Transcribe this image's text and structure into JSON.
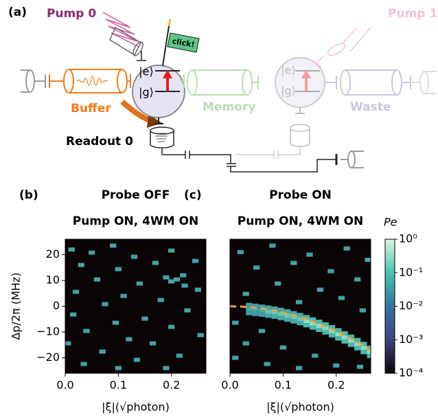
{
  "diagram": {
    "panel_label": "(a)",
    "pump0": "Pump 0",
    "pump1": "Pump 1",
    "click": "click!",
    "qubit0": {
      "e": "|e⟩",
      "g": "|g⟩"
    },
    "qubit1": {
      "e": "|e⟩",
      "g": "|g⟩"
    },
    "buffer": "Buffer",
    "memory": "Memory",
    "waste": "Waste",
    "readout": "Readout 0"
  },
  "colorbar": {
    "label": "Pe",
    "log": true,
    "lim": [
      0.0001,
      1
    ],
    "ticks": [
      {
        "value": 1,
        "label": "10⁰"
      },
      {
        "value": 0.1,
        "label": "10⁻¹"
      },
      {
        "value": 0.01,
        "label": "10⁻²"
      },
      {
        "value": 0.001,
        "label": "10⁻³"
      },
      {
        "value": 0.0001,
        "label": "10⁻⁴"
      }
    ],
    "colormap": [
      "#0b0405",
      "#40427f",
      "#3573a1",
      "#49c1ad",
      "#def5e5"
    ]
  },
  "chart_data": [
    {
      "type": "heatmap",
      "panel_label": "(b)",
      "title": "Probe OFF",
      "subtitle": "Pump ON, 4WM ON",
      "xlabel": "|ξ|(√photon)",
      "ylabel": "Δp/2π (MHz)",
      "xlim": [
        0,
        0.265
      ],
      "ylim": [
        -26,
        26
      ],
      "xticks": [
        {
          "value": 0,
          "label": "0.0"
        },
        {
          "value": 0.1,
          "label": "0.1"
        },
        {
          "value": 0.2,
          "label": "0.2"
        }
      ],
      "yticks": [
        20,
        10,
        0,
        {
          "value": -10,
          "label": "−10"
        },
        {
          "value": -20,
          "label": "−20"
        }
      ],
      "x_step": 0.012,
      "y_step": 1.6,
      "background": 0.0001,
      "points": [
        [
          0.012,
          22,
          0.04
        ],
        [
          0.05,
          20.8,
          0.04
        ],
        [
          0.09,
          23.5,
          0.04
        ],
        [
          0.13,
          19.2,
          0.04
        ],
        [
          0.2,
          21.6,
          0.04
        ],
        [
          0.245,
          17.6,
          0.04
        ],
        [
          0.03,
          16,
          0.04
        ],
        [
          0.1,
          14.4,
          0.04
        ],
        [
          0.17,
          16.8,
          0.04
        ],
        [
          0.222,
          12,
          0.04
        ],
        [
          0.21,
          10.4,
          0.04
        ],
        [
          0.06,
          10.4,
          0.04
        ],
        [
          0.14,
          8.8,
          0.04
        ],
        [
          0.25,
          6.4,
          0.04
        ],
        [
          0.02,
          5.6,
          0.04
        ],
        [
          0.11,
          4,
          0.04
        ],
        [
          0.18,
          2.4,
          0.04
        ],
        [
          0.075,
          0.8,
          0.04
        ],
        [
          0.23,
          -1.6,
          0.04
        ],
        [
          0.015,
          -3.2,
          0.04
        ],
        [
          0.15,
          -4.8,
          0.04
        ],
        [
          0.095,
          -6.4,
          0.04
        ],
        [
          0.2,
          -8,
          0.04
        ],
        [
          0.04,
          -9.6,
          0.04
        ],
        [
          0.255,
          -11.2,
          0.04
        ],
        [
          0.12,
          -12.8,
          0.04
        ],
        [
          0.165,
          -14.4,
          0.04
        ],
        [
          0.005,
          -14.4,
          0.04
        ],
        [
          0.07,
          -17.6,
          0.04
        ],
        [
          0.215,
          -19.2,
          0.04
        ],
        [
          0.135,
          -20.8,
          0.04
        ],
        [
          0.035,
          -22.4,
          0.04
        ],
        [
          0.19,
          -24,
          0.04
        ],
        [
          0.1,
          -24,
          0.04
        ],
        [
          0.19,
          11.2,
          0.04
        ],
        [
          0.2,
          9.6,
          0.04
        ],
        [
          0.225,
          8,
          0.04
        ]
      ]
    },
    {
      "type": "heatmap",
      "panel_label": "(c)",
      "title": "Probe ON",
      "subtitle": "Pump ON, 4WM ON",
      "xlabel": "|ξ|(√photon)",
      "xlim": [
        0,
        0.265
      ],
      "ylim": [
        -26,
        26
      ],
      "xticks": [
        {
          "value": 0,
          "label": "0.0"
        },
        {
          "value": 0.1,
          "label": "0.1"
        },
        {
          "value": 0.2,
          "label": "0.2"
        }
      ],
      "x_step": 0.012,
      "y_step": 1.6,
      "background": 0.0001,
      "points": [
        [
          0.02,
          21,
          0.04
        ],
        [
          0.08,
          23.5,
          0.04
        ],
        [
          0.15,
          20,
          0.04
        ],
        [
          0.22,
          22.4,
          0.04
        ],
        [
          0.26,
          18,
          0.04
        ],
        [
          0.05,
          15,
          0.04
        ],
        [
          0.12,
          16.8,
          0.04
        ],
        [
          0.19,
          13.6,
          0.04
        ],
        [
          0.24,
          10.4,
          0.04
        ],
        [
          0.09,
          8.8,
          0.04
        ],
        [
          0.17,
          6.4,
          0.04
        ],
        [
          0.03,
          4.8,
          0.04
        ],
        [
          0.21,
          3.2,
          0.04
        ],
        [
          0.13,
          1.6,
          0.04
        ],
        [
          0.25,
          -1.6,
          0.04
        ],
        [
          0.01,
          -6.4,
          0.04
        ],
        [
          0.06,
          -9.6,
          0.04
        ],
        [
          0.03,
          -14.4,
          0.04
        ],
        [
          0.1,
          -16,
          0.04
        ],
        [
          0.16,
          -19.2,
          0.04
        ],
        [
          0.07,
          -22.4,
          0.04
        ],
        [
          0.2,
          -23,
          0.04
        ],
        [
          0.13,
          -24,
          0.04
        ],
        [
          0.245,
          -23.5,
          0.04
        ],
        [
          0.01,
          -20,
          0.04
        ],
        [
          0.036,
          0.5,
          0.035
        ],
        [
          0.036,
          -1.1,
          0.05
        ],
        [
          0.036,
          -2.7,
          0.035
        ],
        [
          0.048,
          0.2,
          0.035
        ],
        [
          0.048,
          -1.4,
          0.05
        ],
        [
          0.048,
          -3.0,
          0.035
        ],
        [
          0.06,
          -0.1,
          0.035
        ],
        [
          0.06,
          -1.7,
          0.05
        ],
        [
          0.06,
          -3.3,
          0.035
        ],
        [
          0.072,
          -0.5,
          0.05
        ],
        [
          0.072,
          -2.1,
          0.15
        ],
        [
          0.072,
          -3.7,
          0.05
        ],
        [
          0.084,
          -0.9,
          0.05
        ],
        [
          0.084,
          -2.5,
          0.15
        ],
        [
          0.084,
          -4.1,
          0.05
        ],
        [
          0.096,
          -1.4,
          0.05
        ],
        [
          0.096,
          -3.0,
          0.15
        ],
        [
          0.096,
          -4.6,
          0.05
        ],
        [
          0.108,
          -2.0,
          0.05
        ],
        [
          0.108,
          -3.6,
          0.15
        ],
        [
          0.108,
          -5.2,
          0.05
        ],
        [
          0.12,
          -2.7,
          0.05
        ],
        [
          0.12,
          -4.3,
          0.15
        ],
        [
          0.12,
          -5.9,
          0.05
        ],
        [
          0.132,
          -3.4,
          0.05
        ],
        [
          0.132,
          -5.0,
          0.15
        ],
        [
          0.132,
          -6.6,
          0.05
        ],
        [
          0.144,
          -4.2,
          0.08
        ],
        [
          0.144,
          -5.8,
          0.3
        ],
        [
          0.144,
          -7.4,
          0.08
        ],
        [
          0.156,
          -5.1,
          0.08
        ],
        [
          0.156,
          -6.7,
          0.3
        ],
        [
          0.156,
          -8.3,
          0.08
        ],
        [
          0.168,
          -6.0,
          0.08
        ],
        [
          0.168,
          -7.6,
          0.3
        ],
        [
          0.168,
          -9.2,
          0.08
        ],
        [
          0.18,
          -7.0,
          0.08
        ],
        [
          0.18,
          -8.6,
          0.3
        ],
        [
          0.18,
          -10.2,
          0.08
        ],
        [
          0.192,
          -8.1,
          0.08
        ],
        [
          0.192,
          -9.7,
          0.3
        ],
        [
          0.192,
          -11.3,
          0.08
        ],
        [
          0.204,
          -9.3,
          0.08
        ],
        [
          0.204,
          -10.9,
          0.3
        ],
        [
          0.204,
          -12.5,
          0.08
        ],
        [
          0.216,
          -10.5,
          0.08
        ],
        [
          0.216,
          -12.1,
          0.3
        ],
        [
          0.216,
          -13.7,
          0.08
        ],
        [
          0.228,
          -11.8,
          0.08
        ],
        [
          0.228,
          -13.4,
          0.3
        ],
        [
          0.228,
          -15.0,
          0.08
        ],
        [
          0.24,
          -13.1,
          0.08
        ],
        [
          0.24,
          -14.7,
          0.3
        ],
        [
          0.24,
          -16.3,
          0.08
        ],
        [
          0.252,
          -14.6,
          0.08
        ],
        [
          0.252,
          -16.2,
          0.3
        ],
        [
          0.252,
          -17.8,
          0.08
        ],
        [
          0.264,
          -16.1,
          0.08
        ],
        [
          0.264,
          -17.7,
          0.3
        ],
        [
          0.264,
          -19.3,
          0.08
        ]
      ],
      "fit": {
        "color": "#f2a03a",
        "dashed": true,
        "x": [
          0,
          0.03,
          0.06,
          0.09,
          0.12,
          0.15,
          0.18,
          0.21,
          0.24,
          0.265
        ],
        "y": [
          0,
          -0.22,
          -0.87,
          -1.96,
          -3.48,
          -5.45,
          -7.84,
          -10.67,
          -13.94,
          -17.0
        ]
      }
    }
  ]
}
